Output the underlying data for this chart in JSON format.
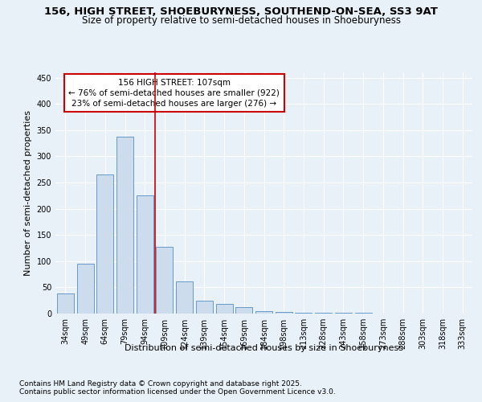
{
  "title_line1": "156, HIGH STREET, SHOEBURYNESS, SOUTHEND-ON-SEA, SS3 9AT",
  "title_line2": "Size of property relative to semi-detached houses in Shoeburyness",
  "xlabel": "Distribution of semi-detached houses by size in Shoeburyness",
  "ylabel": "Number of semi-detached properties",
  "categories": [
    "34sqm",
    "49sqm",
    "64sqm",
    "79sqm",
    "94sqm",
    "109sqm",
    "124sqm",
    "139sqm",
    "154sqm",
    "169sqm",
    "184sqm",
    "198sqm",
    "213sqm",
    "228sqm",
    "243sqm",
    "258sqm",
    "273sqm",
    "288sqm",
    "303sqm",
    "318sqm",
    "333sqm"
  ],
  "values": [
    38,
    95,
    265,
    338,
    225,
    127,
    62,
    25,
    18,
    12,
    5,
    3,
    2,
    1,
    1,
    1,
    0,
    0,
    0,
    0,
    0
  ],
  "bar_color": "#ccdcec",
  "bar_edge_color": "#6699cc",
  "annotation_box_facecolor": "#ffffff",
  "annotation_box_edgecolor": "#cc0000",
  "annotation_title": "156 HIGH STREET: 107sqm",
  "annotation_line1": "← 76% of semi-detached houses are smaller (922)",
  "annotation_line2": "23% of semi-detached houses are larger (276) →",
  "redline_x": 5,
  "ylim_min": 0,
  "ylim_max": 460,
  "yticks": [
    0,
    50,
    100,
    150,
    200,
    250,
    300,
    350,
    400,
    450
  ],
  "footer_line1": "Contains HM Land Registry data © Crown copyright and database right 2025.",
  "footer_line2": "Contains public sector information licensed under the Open Government Licence v3.0.",
  "bg_color": "#e8f0f8",
  "grid_color": "#ffffff",
  "title_fontsize": 9.5,
  "subtitle_fontsize": 8.5,
  "axis_label_fontsize": 8,
  "tick_fontsize": 7,
  "annotation_fontsize": 7.5,
  "footer_fontsize": 6.5
}
